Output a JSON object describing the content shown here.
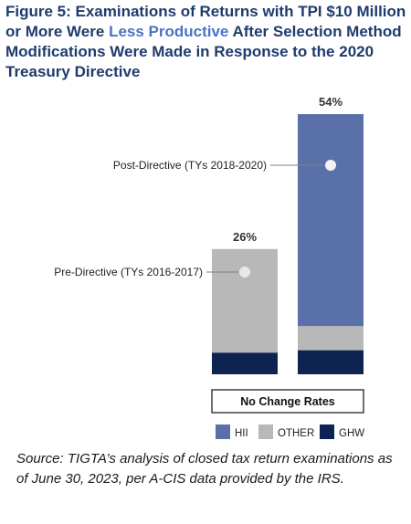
{
  "figure": {
    "title_prefix": "Figure 5:  Examinations of Returns with TPI $10 Million or More Were ",
    "title_highlight": "Less Productive",
    "title_suffix": " After Selection Method Modifications Were Made in Response to the 2020 Treasury Directive",
    "source": "Source:  TIGTA’s analysis of closed tax return examinations as of June 30, 2023, per A-CIS data provided by the IRS."
  },
  "chart_data": {
    "type": "bar",
    "stacked": true,
    "subtitle": "No Change Rates",
    "categories": [
      "Pre-Directive (TYs 2016-2017)",
      "Post-Directive (TYs 2018-2020)"
    ],
    "series": [
      {
        "name": "GHW",
        "color": "#0d2452",
        "values": [
          4.5,
          5
        ]
      },
      {
        "name": "OTHER",
        "color": "#b8b8b8",
        "values": [
          21.5,
          5
        ]
      },
      {
        "name": "HII",
        "color": "#5a70a8",
        "values": [
          0,
          44
        ]
      }
    ],
    "totals": [
      26,
      54
    ],
    "total_labels": [
      "26%",
      "54%"
    ],
    "legend_order": [
      "HII",
      "OTHER",
      "GHW"
    ],
    "legend_position": "bottom",
    "ylim": [
      0,
      54
    ]
  }
}
